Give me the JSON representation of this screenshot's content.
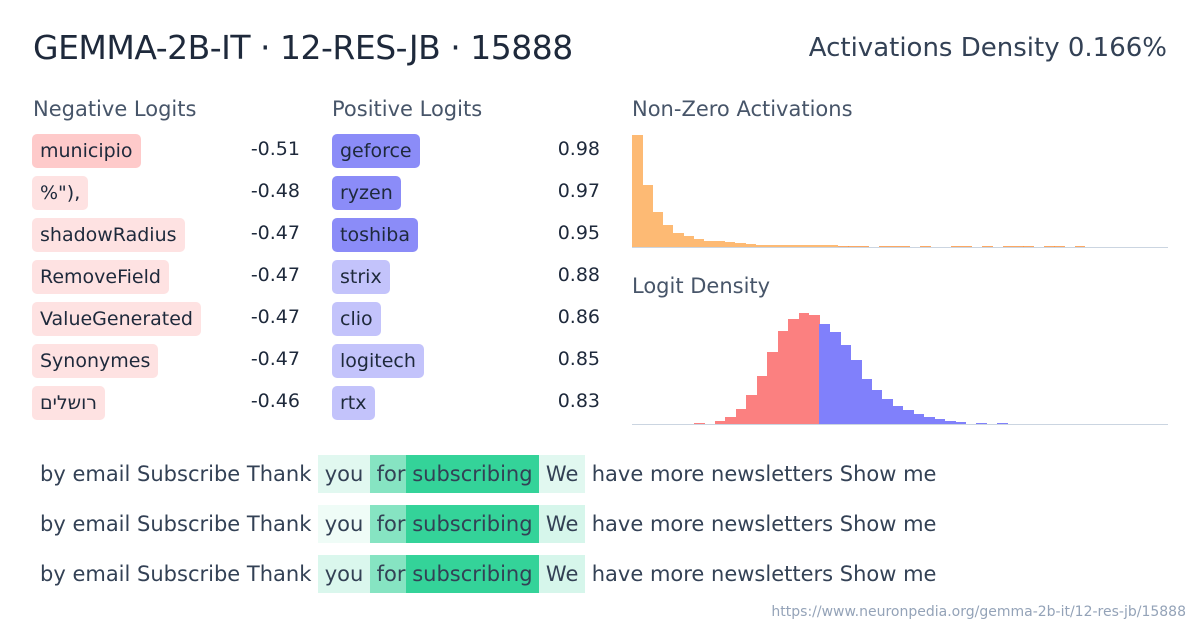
{
  "header": {
    "title": "GEMMA-2B-IT · 12-RES-JB · 15888",
    "density": "Activations Density 0.166%"
  },
  "negative": {
    "label": "Negative Logits",
    "items": [
      {
        "token": "municipio",
        "value": "-0.51",
        "color": "#fecaca"
      },
      {
        "token": "%\"),",
        "value": "-0.48",
        "color": "#fee2e2"
      },
      {
        "token": "shadowRadius",
        "value": "-0.47",
        "color": "#fee2e2"
      },
      {
        "token": "RemoveField",
        "value": "-0.47",
        "color": "#fee2e2"
      },
      {
        "token": "ValueGenerated",
        "value": "-0.47",
        "color": "#fee2e2"
      },
      {
        "token": "Synonymes",
        "value": "-0.47",
        "color": "#fee2e2"
      },
      {
        "token": "רושלים",
        "value": "-0.46",
        "color": "#fee2e2"
      }
    ]
  },
  "positive": {
    "label": "Positive Logits",
    "items": [
      {
        "token": "geforce",
        "value": "0.98",
        "color": "#8b8cf8"
      },
      {
        "token": "ryzen",
        "value": "0.97",
        "color": "#8b8cf8"
      },
      {
        "token": "toshiba",
        "value": "0.95",
        "color": "#8b8cf8"
      },
      {
        "token": "strix",
        "value": "0.88",
        "color": "#c3c3fb"
      },
      {
        "token": "clio",
        "value": "0.86",
        "color": "#c3c3fb"
      },
      {
        "token": "logitech",
        "value": "0.85",
        "color": "#c3c3fb"
      },
      {
        "token": "rtx",
        "value": "0.83",
        "color": "#c3c3fb"
      }
    ]
  },
  "activations_chart": {
    "label": "Non-Zero Activations",
    "color": "#fdba74",
    "values": [
      112,
      62,
      35,
      22,
      14,
      11,
      8,
      6,
      6,
      5,
      4,
      3,
      2,
      2,
      2,
      2,
      2,
      1.7,
      1.7,
      1.7,
      1,
      1,
      1,
      0,
      1,
      1,
      1,
      0,
      1,
      0,
      0,
      1,
      1,
      0,
      1,
      0,
      1,
      1,
      1,
      0,
      1,
      1,
      0,
      1,
      0,
      0,
      0,
      0,
      0,
      0,
      0,
      0
    ]
  },
  "logit_chart": {
    "label": "Logit Density",
    "neg_color": "#fb8080",
    "pos_color": "#8080fb",
    "neg_values": [
      1,
      0,
      3,
      7,
      15,
      29,
      48,
      72,
      93,
      105,
      111,
      109
    ],
    "pos_values": [
      100,
      92,
      79,
      64,
      45,
      34,
      25,
      18,
      14,
      10,
      7,
      5,
      3,
      2,
      0,
      1,
      0,
      1
    ]
  },
  "snippets": [
    [
      {
        "t": "by ",
        "a": 0
      },
      {
        "t": "email ",
        "a": 0
      },
      {
        "t": "Subscribe ",
        "a": 0
      },
      {
        "t": "Thank ",
        "a": 0
      },
      {
        "t": " you ",
        "a": 0.15
      },
      {
        "t": " for",
        "a": 0.55
      },
      {
        "t": " subscribing ",
        "a": 1
      },
      {
        "t": " We ",
        "a": 0.15
      },
      {
        "t": " have more newsletters Show me",
        "a": 0
      }
    ],
    [
      {
        "t": "by ",
        "a": 0
      },
      {
        "t": "email ",
        "a": 0
      },
      {
        "t": "Subscribe ",
        "a": 0
      },
      {
        "t": "Thank ",
        "a": 0
      },
      {
        "t": " you ",
        "a": 0.08
      },
      {
        "t": " for",
        "a": 0.55
      },
      {
        "t": " subscribing ",
        "a": 1
      },
      {
        "t": " We ",
        "a": 0.2
      },
      {
        "t": " have more newsletters Show me",
        "a": 0
      }
    ],
    [
      {
        "t": "by ",
        "a": 0
      },
      {
        "t": "email ",
        "a": 0
      },
      {
        "t": "Subscribe ",
        "a": 0
      },
      {
        "t": "Thank ",
        "a": 0
      },
      {
        "t": " you ",
        "a": 0.18
      },
      {
        "t": " for",
        "a": 0.55
      },
      {
        "t": " subscribing ",
        "a": 1
      },
      {
        "t": " We ",
        "a": 0.2
      },
      {
        "t": " have more newsletters Show me",
        "a": 0
      }
    ]
  ],
  "url": "https://www.neuronpedia.org/gemma-2b-it/12-res-jb/15888"
}
